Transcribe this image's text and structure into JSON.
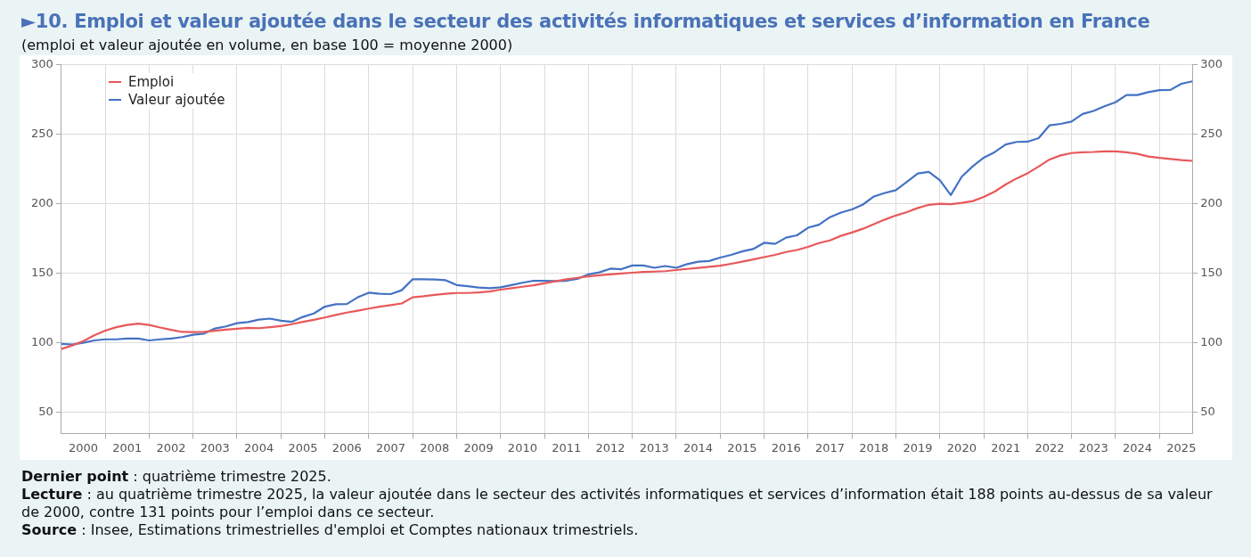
{
  "chart_data": {
    "type": "line",
    "title": "►10. Emploi et valeur ajoutée dans le secteur des activités informatiques et services d’information en France",
    "subtitle": "(emploi et valeur ajoutée en volume, en base 100 = moyenne 2000)",
    "x": [
      2000,
      2000.25,
      2000.5,
      2000.75,
      2001,
      2001.25,
      2001.5,
      2001.75,
      2002,
      2002.25,
      2002.5,
      2002.75,
      2003,
      2003.25,
      2003.5,
      2003.75,
      2004,
      2004.25,
      2004.5,
      2004.75,
      2005,
      2005.25,
      2005.5,
      2005.75,
      2006,
      2006.25,
      2006.5,
      2006.75,
      2007,
      2007.25,
      2007.5,
      2007.75,
      2008,
      2008.25,
      2008.5,
      2008.75,
      2009,
      2009.25,
      2009.5,
      2009.75,
      2010,
      2010.25,
      2010.5,
      2010.75,
      2011,
      2011.25,
      2011.5,
      2011.75,
      2012,
      2012.25,
      2012.5,
      2012.75,
      2013,
      2013.25,
      2013.5,
      2013.75,
      2014,
      2014.25,
      2014.5,
      2014.75,
      2015,
      2015.25,
      2015.5,
      2015.75,
      2016,
      2016.25,
      2016.5,
      2016.75,
      2017,
      2017.25,
      2017.5,
      2017.75,
      2018,
      2018.25,
      2018.5,
      2018.75,
      2019,
      2019.25,
      2019.5,
      2019.75,
      2020,
      2020.25,
      2020.5,
      2020.75,
      2021,
      2021.25,
      2021.5,
      2021.75,
      2022,
      2022.25,
      2022.5,
      2022.75,
      2023,
      2023.25,
      2023.5,
      2023.75,
      2024,
      2024.25,
      2024.5,
      2024.75,
      2025,
      2025.25,
      2025.5,
      2025.75
    ],
    "series": [
      {
        "name": "Emploi",
        "color": "#e8585a",
        "values": [
          95.7,
          98.3,
          101.4,
          105.6,
          108.9,
          111.4,
          113,
          114,
          113,
          111.2,
          109.5,
          108,
          107.9,
          108,
          108.9,
          109.7,
          110.3,
          111,
          110.7,
          111.4,
          112.2,
          113.6,
          115.3,
          116.7,
          118.4,
          120.2,
          121.9,
          123.3,
          124.8,
          126.2,
          127.3,
          128.5,
          132.9,
          133.7,
          134.7,
          135.5,
          136,
          136,
          136.4,
          137,
          138.4,
          139.5,
          140.5,
          141.5,
          143,
          144.4,
          145.9,
          146.9,
          147.9,
          148.8,
          149.4,
          150,
          150.6,
          151.2,
          151.4,
          151.7,
          152.5,
          153.3,
          154,
          154.8,
          155.6,
          157,
          158.5,
          160.1,
          161.8,
          163.4,
          165.5,
          166.9,
          169.2,
          171.9,
          173.8,
          177.1,
          179.5,
          182.2,
          185.5,
          188.8,
          191.7,
          194.2,
          197.1,
          199.4,
          200.2,
          199.8,
          200.8,
          202.1,
          205,
          208.9,
          214,
          218.4,
          222.1,
          226.9,
          232,
          234.9,
          236.6,
          237.2,
          237.4,
          237.8,
          237.8,
          237.2,
          236,
          234.1,
          233.1,
          232.4,
          231.6,
          231
        ]
      },
      {
        "name": "Valeur ajoutée",
        "color": "#4472c4",
        "values": [
          99.4,
          99,
          100.2,
          101.9,
          102.7,
          102.7,
          103.3,
          103.3,
          101.9,
          102.7,
          103.3,
          104.3,
          106,
          106.8,
          110.5,
          112,
          114.3,
          115.1,
          116.9,
          117.6,
          116.1,
          115.3,
          118.8,
          121.3,
          126.2,
          127.9,
          128.1,
          132.9,
          136.2,
          135.5,
          135.2,
          138,
          145.9,
          145.9,
          145.7,
          145.2,
          141.7,
          140.9,
          139.9,
          139.5,
          140.1,
          141.7,
          143.4,
          144.8,
          144.8,
          144.6,
          144.8,
          146.1,
          149.4,
          150.8,
          153.5,
          153.1,
          155.8,
          155.8,
          154.1,
          155.4,
          154.1,
          156.8,
          158.5,
          159,
          161.5,
          163.4,
          165.9,
          167.6,
          172.1,
          171.3,
          175.8,
          177.5,
          182.9,
          185.1,
          190.5,
          193.8,
          196.1,
          199.6,
          205.4,
          207.9,
          209.9,
          215.9,
          221.9,
          223.1,
          217.1,
          206.4,
          219.6,
          227.1,
          233.3,
          237.3,
          242.8,
          244.6,
          244.8,
          247.3,
          256.6,
          257.6,
          259.3,
          264.7,
          266.9,
          270.2,
          273.1,
          278.3,
          278.3,
          280.4,
          281.8,
          282,
          286.4,
          288.2
        ]
      }
    ],
    "xlim": [
      2000,
      2025.75
    ],
    "xticks": [
      {
        "value": 2000.5,
        "label": "2000"
      },
      {
        "value": 2001,
        "label": null
      },
      {
        "value": 2001.5,
        "label": "2001"
      },
      {
        "value": 2002,
        "label": null
      },
      {
        "value": 2002.5,
        "label": "2002"
      },
      {
        "value": 2003,
        "label": null
      },
      {
        "value": 2003.5,
        "label": "2003"
      },
      {
        "value": 2004,
        "label": null
      },
      {
        "value": 2004.5,
        "label": "2004"
      },
      {
        "value": 2005,
        "label": null
      },
      {
        "value": 2005.5,
        "label": "2005"
      },
      {
        "value": 2006,
        "label": null
      },
      {
        "value": 2006.5,
        "label": "2006"
      },
      {
        "value": 2007,
        "label": null
      },
      {
        "value": 2007.5,
        "label": "2007"
      },
      {
        "value": 2008,
        "label": null
      },
      {
        "value": 2008.5,
        "label": "2008"
      },
      {
        "value": 2009,
        "label": null
      },
      {
        "value": 2009.5,
        "label": "2009"
      },
      {
        "value": 2010,
        "label": null
      },
      {
        "value": 2010.5,
        "label": "2010"
      },
      {
        "value": 2011,
        "label": null
      },
      {
        "value": 2011.5,
        "label": "2011"
      },
      {
        "value": 2012,
        "label": null
      },
      {
        "value": 2012.5,
        "label": "2012"
      },
      {
        "value": 2013,
        "label": null
      },
      {
        "value": 2013.5,
        "label": "2013"
      },
      {
        "value": 2014,
        "label": null
      },
      {
        "value": 2014.5,
        "label": "2014"
      },
      {
        "value": 2015,
        "label": null
      },
      {
        "value": 2015.5,
        "label": "2015"
      },
      {
        "value": 2016,
        "label": null
      },
      {
        "value": 2016.5,
        "label": "2016"
      },
      {
        "value": 2017,
        "label": null
      },
      {
        "value": 2017.5,
        "label": "2017"
      },
      {
        "value": 2018,
        "label": null
      },
      {
        "value": 2018.5,
        "label": "2018"
      },
      {
        "value": 2019,
        "label": null
      },
      {
        "value": 2019.5,
        "label": "2019"
      },
      {
        "value": 2020,
        "label": null
      },
      {
        "value": 2020.5,
        "label": "2020"
      },
      {
        "value": 2021,
        "label": null
      },
      {
        "value": 2021.5,
        "label": "2021"
      },
      {
        "value": 2022,
        "label": null
      },
      {
        "value": 2022.5,
        "label": "2022"
      },
      {
        "value": 2023,
        "label": null
      },
      {
        "value": 2023.5,
        "label": "2023"
      },
      {
        "value": 2024,
        "label": null
      },
      {
        "value": 2024.5,
        "label": "2024"
      },
      {
        "value": 2025,
        "label": null
      },
      {
        "value": 2025.5,
        "label": "2025"
      }
    ],
    "ylim": [
      35,
      300
    ],
    "yticks": [
      50,
      100,
      150,
      200,
      250,
      300
    ],
    "y2lim": [
      35,
      300
    ],
    "y2ticks": [
      50,
      100,
      150,
      200,
      250,
      300
    ],
    "grid": true,
    "legend": "top left",
    "marker": "none",
    "line_style": "solid",
    "annotations": [
      "Dernier point : quatrième trimestre 2025.",
      "Lecture : au quatrième trimestre 2025, la valeur ajoutée dans le secteur des activités informatiques et services d’information était 188 points au-dessus de sa valeur de 2000, contre 131 points pour l’emploi dans ce secteur.",
      "Source : Insee, Estimations trimestrielles d'emploi et Comptes nationaux trimestriels."
    ]
  }
}
